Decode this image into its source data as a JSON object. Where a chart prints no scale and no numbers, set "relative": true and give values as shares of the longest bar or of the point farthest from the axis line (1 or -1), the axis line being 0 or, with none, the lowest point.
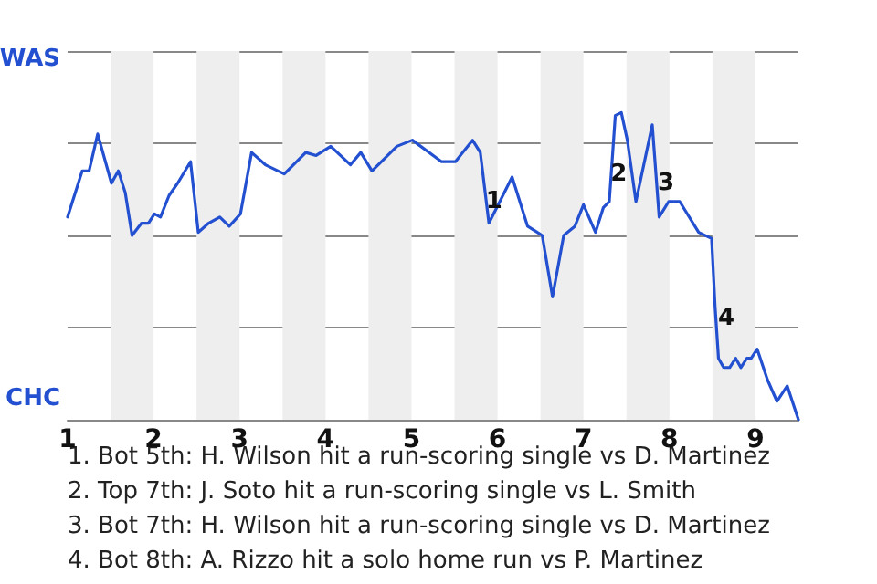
{
  "chart_data": {
    "type": "line",
    "x": [
      1,
      1.17,
      1.25,
      1.35,
      1.51,
      1.59,
      1.67,
      1.75,
      1.86,
      1.94,
      2.01,
      2.08,
      2.18,
      2.28,
      2.43,
      2.52,
      2.64,
      2.77,
      2.88,
      3.01,
      3.14,
      3.3,
      3.52,
      3.77,
      3.89,
      4.06,
      4.29,
      4.41,
      4.54,
      4.83,
      5.01,
      5.35,
      5.51,
      5.71,
      5.8,
      5.9,
      5.99,
      6.17,
      6.35,
      6.52,
      6.64,
      6.77,
      6.9,
      7,
      7.14,
      7.23,
      7.3,
      7.37,
      7.44,
      7.51,
      7.61,
      7.8,
      7.88,
      7.99,
      8.12,
      8.34,
      8.49,
      8.53,
      8.57,
      8.63,
      8.7,
      8.77,
      8.83,
      8.9,
      8.95,
      9.02,
      9.14,
      9.25,
      9.37,
      9.5
    ],
    "series": [
      {
        "color": "#2350d0",
        "values": [
          0.66,
          0.81,
          0.81,
          0.93,
          0.77,
          0.81,
          0.74,
          0.6,
          0.64,
          0.64,
          0.67,
          0.66,
          0.73,
          0.77,
          0.84,
          0.61,
          0.64,
          0.66,
          0.63,
          0.67,
          0.87,
          0.83,
          0.8,
          0.87,
          0.86,
          0.89,
          0.83,
          0.87,
          0.81,
          0.89,
          0.91,
          0.84,
          0.84,
          0.91,
          0.87,
          0.64,
          0.69,
          0.79,
          0.63,
          0.6,
          0.4,
          0.6,
          0.63,
          0.7,
          0.61,
          0.69,
          0.71,
          0.99,
          1,
          0.91,
          0.71,
          0.96,
          0.66,
          0.71,
          0.71,
          0.61,
          0.59,
          0.37,
          0.2,
          0.17,
          0.17,
          0.2,
          0.17,
          0.2,
          0.2,
          0.23,
          0.13,
          0.06,
          0.11,
          0
        ]
      }
    ],
    "relative": true,
    "xlim": [
      1,
      9.5
    ],
    "xticks": [
      1,
      2,
      3,
      4,
      5,
      6,
      7,
      8,
      9
    ],
    "grid": "y",
    "marker": "none",
    "bands": [
      {
        "axis": "x",
        "from": 1.5,
        "to": 2,
        "color": "#eeeeee"
      },
      {
        "axis": "x",
        "from": 2.5,
        "to": 3,
        "color": "#eeeeee"
      },
      {
        "axis": "x",
        "from": 3.5,
        "to": 4,
        "color": "#eeeeee"
      },
      {
        "axis": "x",
        "from": 4.5,
        "to": 5,
        "color": "#eeeeee"
      },
      {
        "axis": "x",
        "from": 5.5,
        "to": 6,
        "color": "#eeeeee"
      },
      {
        "axis": "x",
        "from": 6.5,
        "to": 7,
        "color": "#eeeeee"
      },
      {
        "axis": "x",
        "from": 7.5,
        "to": 8,
        "color": "#eeeeee"
      },
      {
        "axis": "x",
        "from": 8.5,
        "to": 9,
        "color": "#eeeeee"
      }
    ],
    "annotations": [
      "WAS",
      "CHC",
      {
        "text": "1",
        "x": 5.96,
        "y": 0.71
      },
      {
        "text": "2",
        "x": 7.41,
        "y": 0.8
      },
      {
        "text": "3",
        "x": 7.96,
        "y": 0.77
      },
      {
        "text": "4",
        "x": 8.66,
        "y": 0.33
      },
      "1. Bot 5th: H. Wilson hit a run-scoring single vs D. Martinez",
      "2. Top 7th: J. Soto hit a run-scoring single vs L. Smith",
      "3. Bot 7th: H. Wilson hit a run-scoring single vs D. Martinez",
      "4. Bot 8th: A. Rizzo hit a solo home run vs P. Martinez"
    ]
  }
}
